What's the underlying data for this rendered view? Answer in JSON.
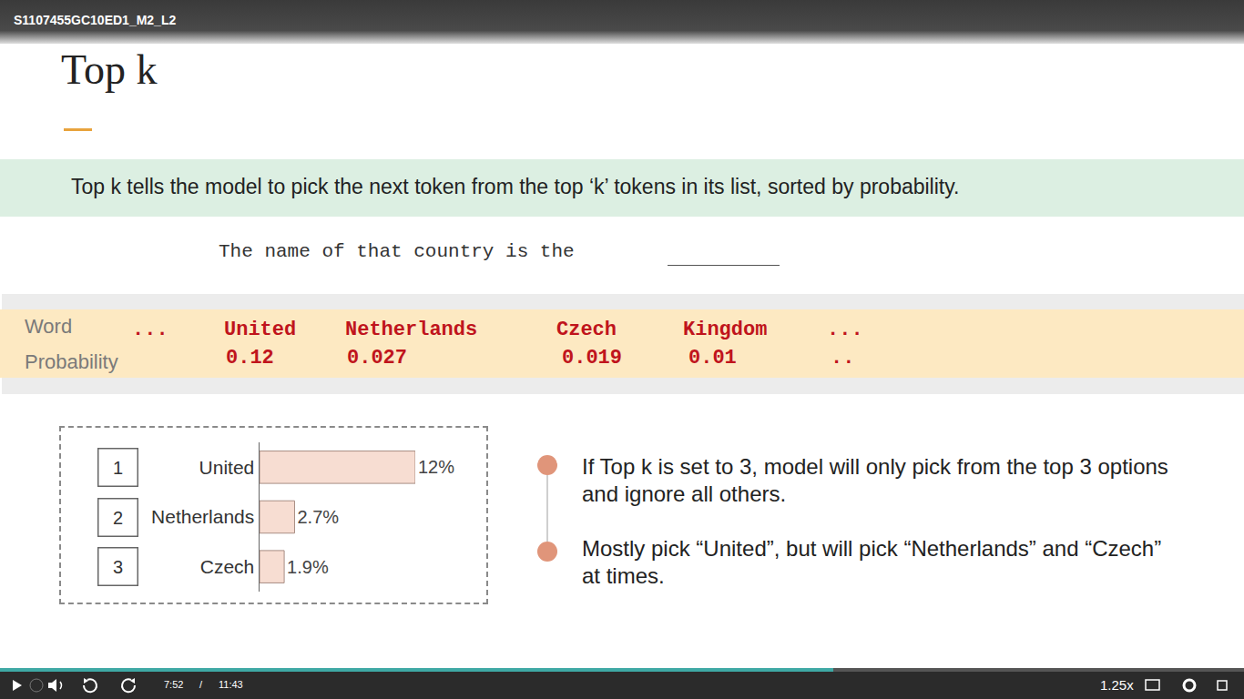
{
  "player": {
    "video_title": "S1107455GC10ED1_M2_L2",
    "current_time": "7:52",
    "separator": "/",
    "duration": "11:43",
    "speed": "1.25x"
  },
  "slide": {
    "title": "Top k",
    "banner": "Top k tells the model to pick the next token from the top ‘k’ tokens in its list, sorted by probability.",
    "sentence": "The name of that country is the",
    "table": {
      "row_labels": [
        "Word",
        "Probability"
      ],
      "words": [
        "...",
        "United",
        "Netherlands",
        "Czech",
        "Kingdom",
        "..."
      ],
      "probabilities": [
        null,
        0.12,
        0.027,
        0.019,
        0.01,
        ".."
      ]
    },
    "bullets": [
      "If Top k is set to 3, model will only pick from the top 3 options and ignore all others.",
      "Mostly pick “United”, but will pick “Netherlands” and “Czech” at times."
    ]
  },
  "chart_data": {
    "type": "bar",
    "orientation": "horizontal",
    "categories": [
      "United",
      "Netherlands",
      "Czech"
    ],
    "ranks": [
      1,
      2,
      3
    ],
    "values": [
      12,
      2.7,
      1.9
    ],
    "value_labels": [
      "12%",
      "2.7%",
      "1.9%"
    ],
    "data_labels": true,
    "color": "#f7ddd2",
    "xlim": [
      0,
      12
    ],
    "tick_labels": "y",
    "grid": false
  }
}
